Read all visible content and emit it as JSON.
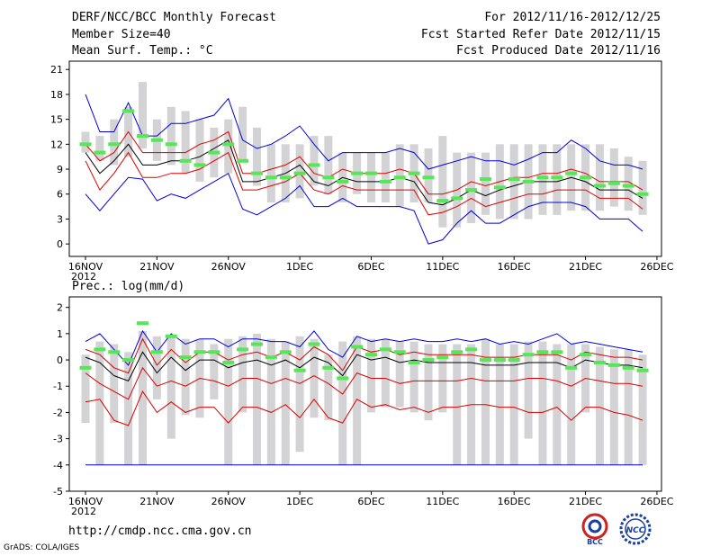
{
  "header": {
    "title": "DERF/NCC/BCC Monthly Forecast",
    "member_size": "Member Size=40",
    "variable": "Mean Surf. Temp.: °C",
    "period": "For 2012/11/16-2012/12/25",
    "started": "Fcst Started Refer Date 2012/11/15",
    "produced": "Fcst Produced Date 2012/11/16"
  },
  "footer": {
    "url": "http://cmdp.ncc.cma.gov.cn",
    "credit": "GrADS: COLA/IGES",
    "logo_left_text": "BCC",
    "logo_right_text": "NCC"
  },
  "colors": {
    "box": "#d3d3d5",
    "obs": "#55e755",
    "mean": "#000000",
    "inner": "#dd0000",
    "outer": "#0000dd"
  },
  "chart_data": [
    {
      "type": "line",
      "title": "Mean Surf. Temp.: °C",
      "ylim": [
        -1.5,
        22
      ],
      "yticks": [
        0,
        3,
        6,
        9,
        12,
        15,
        18,
        21
      ],
      "xticks": [
        {
          "day": 0,
          "label": "16NOV",
          "sub": "2012"
        },
        {
          "day": 5,
          "label": "21NOV"
        },
        {
          "day": 10,
          "label": "26NOV"
        },
        {
          "day": 15,
          "label": "1DEC"
        },
        {
          "day": 20,
          "label": "6DEC"
        },
        {
          "day": 25,
          "label": "11DEC"
        },
        {
          "day": 30,
          "label": "16DEC"
        },
        {
          "day": 35,
          "label": "21DEC"
        },
        {
          "day": 40,
          "label": "26DEC"
        }
      ],
      "days": 40,
      "box_low": [
        11,
        10,
        9.5,
        10.5,
        11.5,
        10,
        9.5,
        8.5,
        7.5,
        8,
        8.5,
        10,
        7,
        5,
        5,
        5.5,
        7,
        6,
        5,
        6,
        5,
        5,
        4.5,
        5,
        5,
        2,
        2,
        2.5,
        3.5,
        3,
        3,
        3,
        3.5,
        3.5,
        4,
        4,
        4,
        4.5,
        4,
        3.5
      ],
      "box_high": [
        13.5,
        13,
        15,
        16.5,
        19.5,
        15,
        16.5,
        16,
        15,
        14,
        15,
        16.5,
        14,
        12,
        12,
        12,
        13,
        13,
        11,
        11,
        11,
        11,
        12,
        12,
        11.5,
        13,
        11,
        11,
        11,
        12,
        12,
        12,
        12,
        12,
        12,
        12,
        12,
        11.5,
        10.5,
        10
      ],
      "obs": [
        12,
        11,
        12,
        16,
        13,
        12.5,
        12,
        10,
        9.5,
        11,
        12,
        10,
        8.5,
        8,
        8,
        8.5,
        9.5,
        8,
        7.5,
        8.5,
        8.5,
        7.5,
        8,
        8.5,
        8,
        5.2,
        5.5,
        6.5,
        7.8,
        6.8,
        7.8,
        7.5,
        8,
        8,
        8.5,
        8,
        7,
        7.3,
        7,
        6
      ],
      "mean": [
        11,
        8.5,
        10,
        12,
        9.5,
        9.5,
        10,
        10,
        10.5,
        11.5,
        12.5,
        7.5,
        7.5,
        8,
        8.5,
        9.5,
        7.5,
        7,
        8,
        7.5,
        7.5,
        7.5,
        8,
        7.5,
        5,
        4.7,
        5.5,
        6.5,
        5.8,
        6.5,
        7,
        7.5,
        7.5,
        7.5,
        8,
        7.5,
        6.5,
        6.5,
        6.5,
        5.5
      ],
      "inner_high": [
        12,
        10,
        11,
        13.5,
        11,
        11,
        11,
        11,
        12,
        12.5,
        13.5,
        8.5,
        8.5,
        9,
        9.5,
        10.5,
        8.5,
        8,
        9,
        8.5,
        8.5,
        8.5,
        9,
        8.5,
        6,
        6,
        6.5,
        7.5,
        7,
        7.5,
        8,
        8,
        8.5,
        8.5,
        9,
        8.5,
        7.5,
        7.5,
        7.5,
        6.5
      ],
      "inner_low": [
        10,
        6.5,
        8.5,
        11,
        8,
        8,
        8.5,
        8.5,
        9,
        10,
        11,
        6.5,
        6.5,
        7,
        7.5,
        8.5,
        6.5,
        6,
        7,
        6.5,
        6.5,
        6.5,
        6.5,
        6.5,
        3.5,
        3.8,
        4.5,
        5.5,
        4.5,
        5,
        5.5,
        6,
        6,
        6.5,
        6.5,
        6.5,
        5.5,
        5.5,
        5.5,
        4.2
      ],
      "outer_high": [
        18,
        13.5,
        13.5,
        17,
        13,
        13,
        14.5,
        14.5,
        15,
        15.5,
        17.5,
        12.5,
        11.5,
        12,
        13,
        14.2,
        12,
        10,
        11,
        11,
        11,
        11,
        11.5,
        11,
        9,
        9.5,
        10,
        10.5,
        10,
        10,
        9.5,
        10.2,
        11,
        11,
        12.5,
        11.5,
        10,
        9.5,
        9.5,
        9
      ],
      "outer_low": [
        6,
        4,
        6,
        8,
        7.8,
        5.2,
        6,
        5.5,
        6.5,
        7.5,
        8.5,
        4.2,
        3.5,
        4.5,
        5.5,
        7,
        4.5,
        4.5,
        5.5,
        4.5,
        4.5,
        4.5,
        4.5,
        4,
        0,
        0.5,
        2.5,
        4,
        2.5,
        2.5,
        3.5,
        4.5,
        5,
        5,
        5,
        4.5,
        3,
        3,
        3,
        1.5
      ]
    },
    {
      "type": "line",
      "title": "Prec.: log(mm/d)",
      "ylim": [
        -5,
        2.4
      ],
      "yticks": [
        -5,
        -4,
        -3,
        -2,
        -1,
        0,
        1,
        2
      ],
      "xticks": [
        {
          "day": 0,
          "label": "16NOV",
          "sub": "2012"
        },
        {
          "day": 5,
          "label": "21NOV"
        },
        {
          "day": 10,
          "label": "26NOV"
        },
        {
          "day": 15,
          "label": "1DEC"
        },
        {
          "day": 20,
          "label": "6DEC"
        },
        {
          "day": 25,
          "label": "11DEC"
        },
        {
          "day": 30,
          "label": "16DEC"
        },
        {
          "day": 35,
          "label": "21DEC"
        },
        {
          "day": 40,
          "label": "26DEC"
        }
      ],
      "days": 40,
      "box_low": [
        -2.4,
        -4,
        -2.4,
        -4,
        -4,
        -1.5,
        -3,
        -2.1,
        -2.2,
        -1.5,
        -4,
        -2,
        -4,
        -4,
        -4,
        -3.5,
        -2.2,
        -2.3,
        -4,
        -4,
        -2,
        -1.8,
        -1.8,
        -2,
        -2.3,
        -2,
        -4,
        -4,
        -4,
        -4,
        -4,
        -3,
        -4,
        -4,
        -4,
        -2,
        -4,
        -4,
        -4,
        -4
      ],
      "box_high": [
        0.2,
        0.7,
        0.6,
        0.3,
        1.1,
        0.9,
        0.9,
        0.8,
        0.8,
        0.6,
        0.8,
        0.9,
        1,
        0.8,
        0.7,
        0.9,
        0.8,
        0.2,
        0.7,
        0.9,
        0.8,
        0.8,
        0.7,
        0.7,
        0.6,
        0.6,
        0.6,
        0.6,
        0.8,
        0.6,
        0.6,
        0.7,
        0.7,
        0.6,
        0.6,
        0.6,
        0.5,
        0.4,
        0.4,
        0.2
      ],
      "obs": [
        -0.3,
        0.4,
        0.3,
        0,
        1.4,
        0.3,
        0.9,
        0.1,
        0.3,
        0.3,
        -0.1,
        0.4,
        0.6,
        0.1,
        0.3,
        -0.4,
        0.6,
        -0.3,
        -0.7,
        0.5,
        0.2,
        0.4,
        0.3,
        -0.1,
        0,
        0.1,
        0.3,
        0.4,
        0,
        0,
        0,
        0.2,
        0.3,
        0.3,
        -0.3,
        0.2,
        -0.1,
        -0.2,
        -0.3,
        -0.4
      ],
      "mean": [
        0.1,
        -0.1,
        -0.6,
        -0.8,
        0.3,
        -0.5,
        0.1,
        -0.4,
        0,
        0,
        -0.3,
        -0.1,
        0,
        -0.2,
        0,
        -0.3,
        0.1,
        -0.1,
        -0.6,
        0.2,
        0,
        0.1,
        -0.1,
        0,
        -0.1,
        -0.1,
        -0.1,
        -0.1,
        -0.2,
        -0.2,
        -0.2,
        -0.1,
        -0.1,
        -0.1,
        -0.3,
        0,
        -0.1,
        -0.2,
        -0.2,
        -0.3
      ],
      "inner_high": [
        0.4,
        0.2,
        -0.3,
        -0.5,
        0.8,
        -0.2,
        0.4,
        -0.1,
        0.3,
        0.3,
        0,
        0.2,
        0.3,
        0.1,
        0.3,
        0,
        0.5,
        0.2,
        -0.4,
        0.5,
        0.3,
        0.4,
        0.2,
        0.3,
        0.2,
        0.2,
        0.2,
        0.2,
        0.1,
        0.1,
        0.1,
        0.2,
        0.2,
        0.2,
        0,
        0.3,
        0.2,
        0.1,
        0.1,
        0
      ],
      "inner_low": [
        -0.5,
        -0.9,
        -1.2,
        -1.5,
        -0.3,
        -1.0,
        -0.8,
        -1.0,
        -0.7,
        -0.8,
        -1.0,
        -0.7,
        -0.7,
        -0.9,
        -0.7,
        -0.9,
        -0.6,
        -0.9,
        -1.3,
        -0.5,
        -0.7,
        -0.7,
        -0.9,
        -0.8,
        -0.8,
        -0.8,
        -0.8,
        -0.7,
        -0.8,
        -0.8,
        -0.8,
        -0.7,
        -0.7,
        -0.8,
        -1.0,
        -0.7,
        -0.8,
        -0.9,
        -0.9,
        -1.0
      ],
      "inner_low2": [
        -1.6,
        -1.5,
        -2.3,
        -2.5,
        -1.2,
        -2.0,
        -1.6,
        -2.0,
        -1.8,
        -1.8,
        -2.4,
        -1.8,
        -1.8,
        -2.0,
        -1.7,
        -2.2,
        -1.5,
        -2.2,
        -2.4,
        -1.5,
        -1.8,
        -1.7,
        -1.9,
        -1.8,
        -2.0,
        -1.8,
        -1.8,
        -1.7,
        -1.7,
        -1.8,
        -1.8,
        -2.0,
        -2.0,
        -1.8,
        -2.3,
        -1.8,
        -1.8,
        -2.0,
        -2.1,
        -2.3
      ],
      "outer_high": [
        0.7,
        1.0,
        0.4,
        -0.2,
        1.1,
        0.3,
        1.0,
        0.6,
        0.8,
        0.8,
        0.5,
        0.8,
        0.8,
        0.7,
        0.7,
        0.5,
        1.1,
        0.4,
        0.1,
        0.9,
        0.7,
        0.8,
        0.7,
        0.8,
        0.7,
        0.7,
        0.8,
        0.7,
        0.8,
        0.6,
        0.7,
        0.6,
        0.8,
        1.0,
        0.6,
        0.7,
        0.6,
        0.5,
        0.4,
        0.3
      ],
      "outer_low": [
        -4,
        -4,
        -4,
        -4,
        -4,
        -4,
        -4,
        -4,
        -4,
        -4,
        -4,
        -4,
        -4,
        -4,
        -4,
        -4,
        -4,
        -4,
        -4,
        -4,
        -4,
        -4,
        -4,
        -4,
        -4,
        -4,
        -4,
        -4,
        -4,
        -4,
        -4,
        -4,
        -4,
        -4,
        -4,
        -4,
        -4,
        -4,
        -4,
        -4
      ]
    }
  ]
}
